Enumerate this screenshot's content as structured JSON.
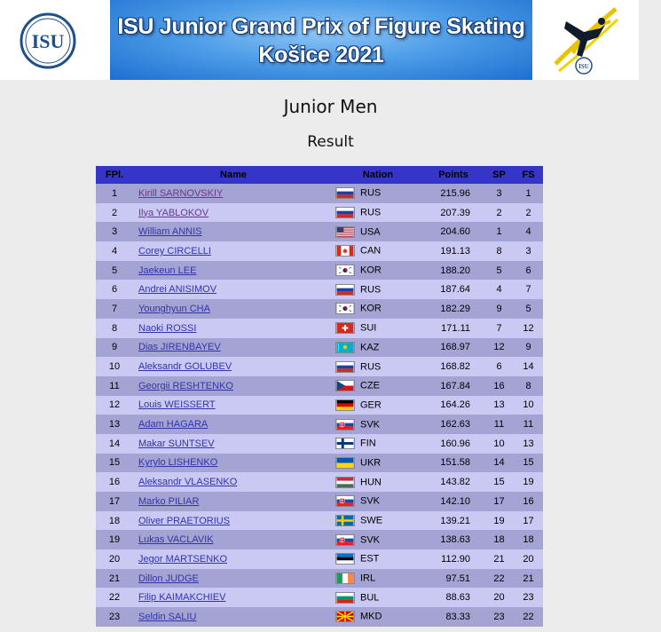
{
  "banner": {
    "title_line1": "ISU Junior Grand Prix of Figure Skating",
    "title_line2": "Košice 2021",
    "logo_text": "ISU",
    "skater_logo_text": "ISU"
  },
  "page": {
    "event_title": "Junior Men",
    "section_title": "Result"
  },
  "table": {
    "headers": {
      "fpl": "FPl.",
      "name": "Name",
      "nation": "Nation",
      "points": "Points",
      "sp": "SP",
      "fs": "FS"
    },
    "rows": [
      {
        "fpl": "1",
        "name": "Kirill SARNOVSKIY",
        "nation": "RUS",
        "points": "215.96",
        "sp": "3",
        "fs": "1"
      },
      {
        "fpl": "2",
        "name": "Ilya YABLOKOV",
        "nation": "RUS",
        "points": "207.39",
        "sp": "2",
        "fs": "2"
      },
      {
        "fpl": "3",
        "name": "William ANNIS",
        "nation": "USA",
        "points": "204.60",
        "sp": "1",
        "fs": "4"
      },
      {
        "fpl": "4",
        "name": "Corey CIRCELLI",
        "nation": "CAN",
        "points": "191.13",
        "sp": "8",
        "fs": "3"
      },
      {
        "fpl": "5",
        "name": "Jaekeun LEE",
        "nation": "KOR",
        "points": "188.20",
        "sp": "5",
        "fs": "6"
      },
      {
        "fpl": "6",
        "name": "Andrei ANISIMOV",
        "nation": "RUS",
        "points": "187.64",
        "sp": "4",
        "fs": "7"
      },
      {
        "fpl": "7",
        "name": "Younghyun CHA",
        "nation": "KOR",
        "points": "182.29",
        "sp": "9",
        "fs": "5"
      },
      {
        "fpl": "8",
        "name": "Naoki ROSSI",
        "nation": "SUI",
        "points": "171.11",
        "sp": "7",
        "fs": "12"
      },
      {
        "fpl": "9",
        "name": "Dias JIRENBAYEV",
        "nation": "KAZ",
        "points": "168.97",
        "sp": "12",
        "fs": "9"
      },
      {
        "fpl": "10",
        "name": "Aleksandr GOLUBEV",
        "nation": "RUS",
        "points": "168.82",
        "sp": "6",
        "fs": "14"
      },
      {
        "fpl": "11",
        "name": "Georgii RESHTENKO",
        "nation": "CZE",
        "points": "167.84",
        "sp": "16",
        "fs": "8"
      },
      {
        "fpl": "12",
        "name": "Louis WEISSERT",
        "nation": "GER",
        "points": "164.26",
        "sp": "13",
        "fs": "10"
      },
      {
        "fpl": "13",
        "name": "Adam HAGARA",
        "nation": "SVK",
        "points": "162.63",
        "sp": "11",
        "fs": "11"
      },
      {
        "fpl": "14",
        "name": "Makar SUNTSEV",
        "nation": "FIN",
        "points": "160.96",
        "sp": "10",
        "fs": "13"
      },
      {
        "fpl": "15",
        "name": "Kyrylo LISHENKO",
        "nation": "UKR",
        "points": "151.58",
        "sp": "14",
        "fs": "15"
      },
      {
        "fpl": "16",
        "name": "Aleksandr VLASENKO",
        "nation": "HUN",
        "points": "143.82",
        "sp": "15",
        "fs": "19"
      },
      {
        "fpl": "17",
        "name": "Marko PILIAR",
        "nation": "SVK",
        "points": "142.10",
        "sp": "17",
        "fs": "16"
      },
      {
        "fpl": "18",
        "name": "Oliver PRAETORIUS",
        "nation": "SWE",
        "points": "139.21",
        "sp": "19",
        "fs": "17"
      },
      {
        "fpl": "19",
        "name": "Lukas VACLAVIK",
        "nation": "SVK",
        "points": "138.63",
        "sp": "18",
        "fs": "18"
      },
      {
        "fpl": "20",
        "name": "Jegor MARTSENKO",
        "nation": "EST",
        "points": "112.90",
        "sp": "21",
        "fs": "20"
      },
      {
        "fpl": "21",
        "name": "Dillon JUDGE",
        "nation": "IRL",
        "points": "97.51",
        "sp": "22",
        "fs": "21"
      },
      {
        "fpl": "22",
        "name": "Filip KAIMAKCHIEV",
        "nation": "BUL",
        "points": "88.63",
        "sp": "20",
        "fs": "23"
      },
      {
        "fpl": "23",
        "name": "Seldin SALIU",
        "nation": "MKD",
        "points": "83.33",
        "sp": "23",
        "fs": "22"
      }
    ]
  },
  "colors": {
    "header_bg": "#3535c8",
    "row_odd": "#a3a3d4",
    "row_even": "#c9c9f4",
    "link": "#3333aa",
    "visited_link": "#6a3a8a"
  }
}
